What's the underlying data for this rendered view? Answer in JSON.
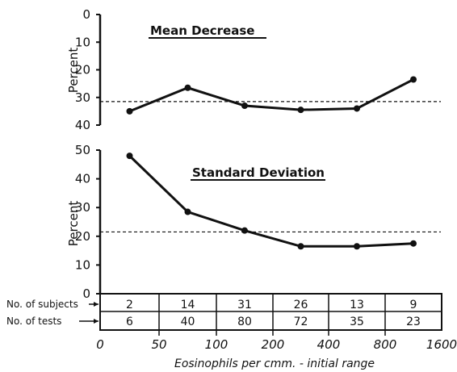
{
  "chart_data": [
    {
      "type": "line",
      "title": "Mean Decrease",
      "ylabel": "Percent",
      "y_inverted": true,
      "ylim": [
        0,
        40
      ],
      "yticks": [
        "0",
        "10",
        "20",
        "30",
        "40"
      ],
      "values": [
        35,
        26.5,
        33,
        34.5,
        34,
        23.5
      ],
      "reference_line": 31.5,
      "reference_style": "dashed"
    },
    {
      "type": "line",
      "title": "Standard Deviation",
      "ylabel": "Percent",
      "ylim": [
        0,
        50
      ],
      "yticks": [
        "0",
        "10",
        "20",
        "30",
        "40",
        "50"
      ],
      "values": [
        48,
        28.5,
        22,
        16.5,
        16.5,
        17.5
      ],
      "reference_line": 21.5,
      "reference_style": "dashed"
    }
  ],
  "table": {
    "rows": [
      {
        "label": "No. of subjects",
        "values": [
          "2",
          "14",
          "31",
          "26",
          "13",
          "9"
        ]
      },
      {
        "label": "No. of tests",
        "values": [
          "6",
          "40",
          "80",
          "72",
          "35",
          "23"
        ]
      }
    ]
  },
  "x_axis": {
    "tick_labels": [
      "0",
      "50",
      "100",
      "200",
      "400",
      "800",
      "1600"
    ],
    "title": "Eosinophils per cmm. - initial range"
  }
}
